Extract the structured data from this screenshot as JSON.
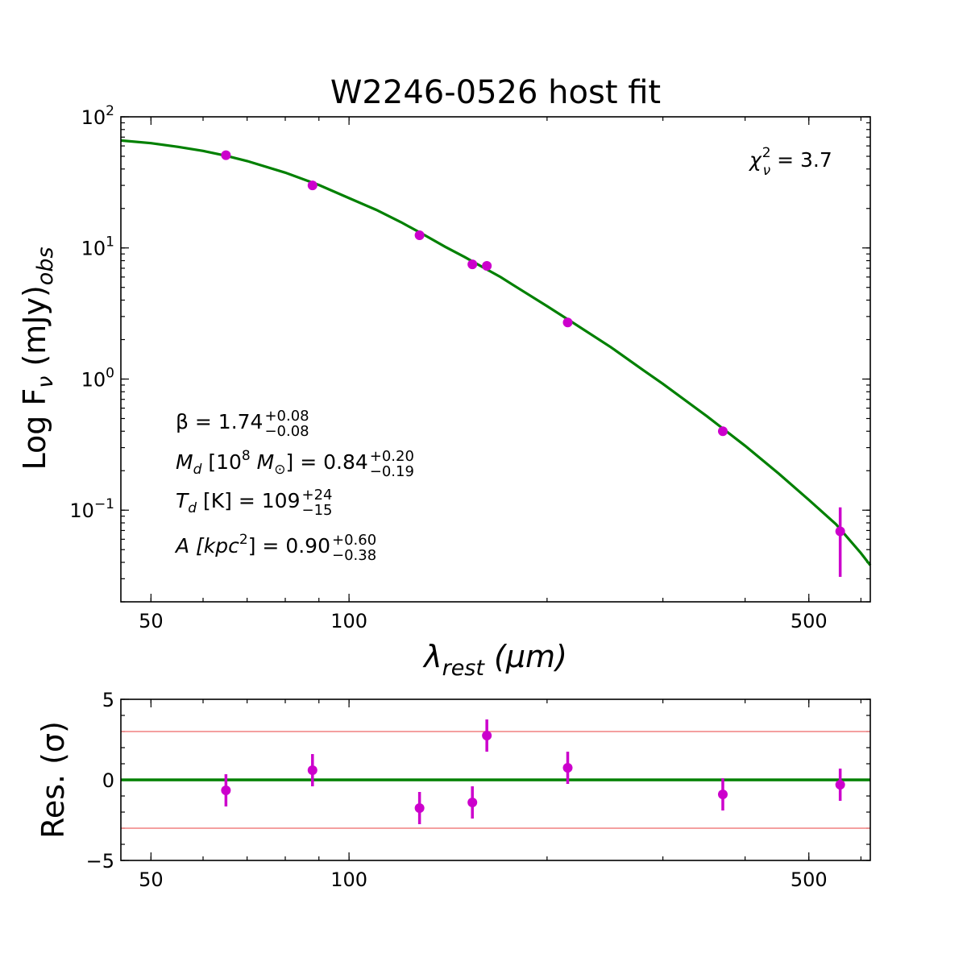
{
  "chart_data": [
    {
      "type": "scatter",
      "title": "W2246-0526 host fit",
      "xlabel_main": "λ",
      "xlabel_sub": "rest",
      "xlabel_unit": "(μm)",
      "ylabel_main": "Log F",
      "ylabel_nu": "ν",
      "ylabel_unit": " (mJy)",
      "ylabel_sub": "obs",
      "x_scale": "log",
      "y_scale": "log",
      "xlim": [
        45,
        620
      ],
      "ylim": [
        0.02,
        100
      ],
      "x_ticks": [
        50,
        100,
        500
      ],
      "x_tick_labels": [
        "50",
        "100",
        "500"
      ],
      "y_tick_base": "10",
      "y_ticks": [
        100,
        10,
        1,
        0.1
      ],
      "y_tick_exponents": [
        "2",
        "1",
        "0",
        "−1"
      ],
      "chi2": {
        "symbol": "χ",
        "sub": "ν",
        "sup": "2",
        "value": " = 3.7"
      },
      "annotations": [
        {
          "lhs": "β = 1.74",
          "sup": "+0.08",
          "sub": "−0.08"
        },
        {
          "lhs": "M_d [10^8 M_⊙] = 0.84",
          "lhs_parts": [
            "M",
            "d",
            " [10",
            "8",
            " M",
            "⊙",
            "] = 0.84"
          ],
          "sup": "+0.20",
          "sub": "−0.19"
        },
        {
          "lhs": "T_d [K] = 109",
          "lhs_parts": [
            "T",
            "d",
            " [K] = 109"
          ],
          "sup": "+24",
          "sub": "−15"
        },
        {
          "lhs": "A [kpc^2] = 0.90",
          "lhs_parts": [
            "A [kpc",
            "2",
            "] = 0.90"
          ],
          "sup": "+0.60",
          "sub": "−0.38"
        }
      ],
      "series": [
        {
          "name": "model",
          "kind": "line",
          "color": "#008000",
          "x": [
            45,
            50,
            55,
            60,
            65,
            70,
            80,
            90,
            100,
            110,
            120,
            130,
            140,
            150,
            160,
            170,
            180,
            200,
            220,
            250,
            280,
            300,
            350,
            400,
            450,
            500,
            550,
            600,
            620
          ],
          "y": [
            66,
            63,
            59,
            55,
            50.5,
            46,
            37.5,
            30.2,
            24,
            19.5,
            15.7,
            12.6,
            10.2,
            8.5,
            7.1,
            6.0,
            5.0,
            3.6,
            2.65,
            1.75,
            1.17,
            0.92,
            0.52,
            0.31,
            0.19,
            0.12,
            0.078,
            0.047,
            0.038
          ]
        },
        {
          "name": "data",
          "kind": "points",
          "color": "#cc00cc",
          "x": [
            65,
            88,
            128,
            154,
            162,
            215,
            370,
            558
          ],
          "y": [
            51,
            30,
            12.5,
            7.5,
            7.3,
            2.7,
            0.4,
            0.069
          ],
          "yerr_low": [
            null,
            null,
            null,
            null,
            null,
            null,
            null,
            0.031
          ],
          "yerr_high": [
            null,
            null,
            null,
            null,
            null,
            null,
            null,
            0.105
          ]
        }
      ]
    },
    {
      "type": "scatter",
      "title": "",
      "ylabel": "Res. (σ)",
      "x_scale": "log",
      "xlim": [
        45,
        620
      ],
      "ylim": [
        -5,
        5
      ],
      "x_ticks": [
        50,
        100,
        500
      ],
      "x_tick_labels": [
        "50",
        "100",
        "500"
      ],
      "y_ticks": [
        5,
        0,
        -5
      ],
      "y_tick_labels": [
        "5",
        "0",
        "−5"
      ],
      "reference_lines": [
        {
          "y": 0,
          "color": "#008000"
        },
        {
          "y": 3,
          "color": "#f08080"
        },
        {
          "y": -3,
          "color": "#f08080"
        }
      ],
      "series": [
        {
          "name": "residuals",
          "kind": "points",
          "color": "#cc00cc",
          "x": [
            65,
            88,
            128,
            154,
            162,
            215,
            370,
            558
          ],
          "y": [
            -0.65,
            0.6,
            -1.75,
            -1.4,
            2.75,
            0.75,
            -0.9,
            -0.3
          ],
          "err": [
            1.0,
            1.0,
            1.0,
            1.0,
            1.0,
            1.0,
            1.0,
            1.0
          ]
        }
      ]
    }
  ]
}
